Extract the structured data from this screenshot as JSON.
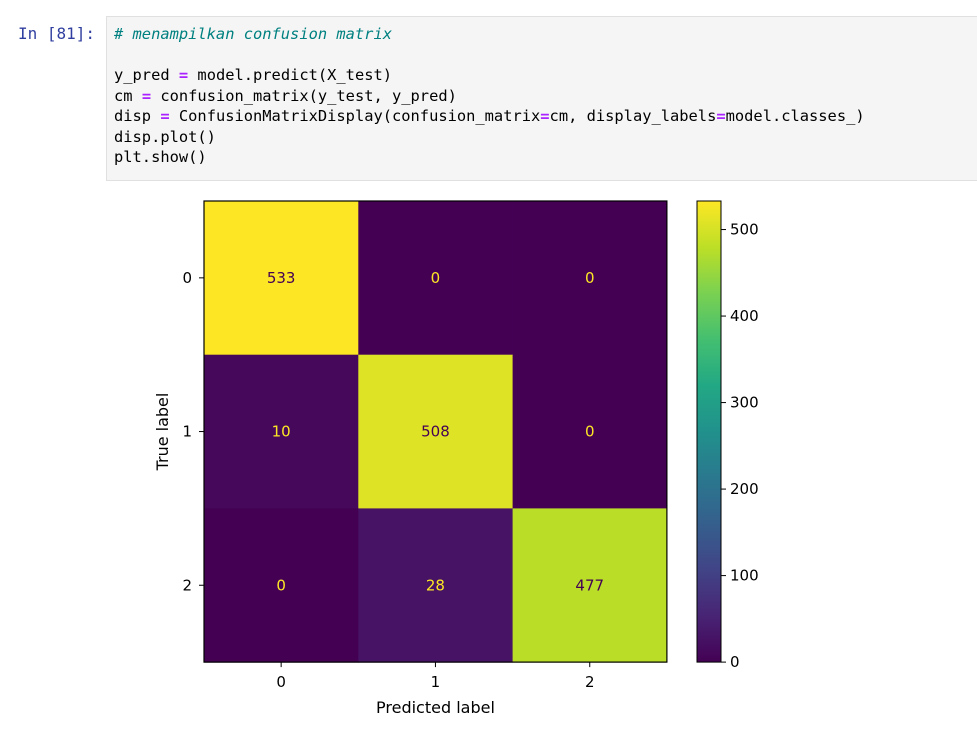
{
  "cell": {
    "prompt": "In [81]:",
    "code_lines": [
      [
        {
          "t": "# menampilkan confusion matrix",
          "c": "comment"
        }
      ],
      [
        {
          "t": "",
          "c": ""
        }
      ],
      [
        {
          "t": "y_pred ",
          "c": ""
        },
        {
          "t": "=",
          "c": "op"
        },
        {
          "t": " model.predict(X_test)",
          "c": ""
        }
      ],
      [
        {
          "t": "cm ",
          "c": ""
        },
        {
          "t": "=",
          "c": "op"
        },
        {
          "t": " confusion_matrix(y_test, y_pred)",
          "c": ""
        }
      ],
      [
        {
          "t": "disp ",
          "c": ""
        },
        {
          "t": "=",
          "c": "op"
        },
        {
          "t": " ConfusionMatrixDisplay(confusion_matrix",
          "c": ""
        },
        {
          "t": "=",
          "c": "op"
        },
        {
          "t": "cm, display_labels",
          "c": ""
        },
        {
          "t": "=",
          "c": "op"
        },
        {
          "t": "model.classes_)",
          "c": ""
        }
      ],
      [
        {
          "t": "disp.plot()",
          "c": ""
        }
      ],
      [
        {
          "t": "plt.show()",
          "c": ""
        }
      ]
    ]
  },
  "chart_data": {
    "type": "heatmap",
    "title": "",
    "xlabel": "Predicted label",
    "ylabel": "True label",
    "x_tick_labels": [
      "0",
      "1",
      "2"
    ],
    "y_tick_labels": [
      "0",
      "1",
      "2"
    ],
    "matrix": [
      [
        533,
        0,
        0
      ],
      [
        10,
        508,
        0
      ],
      [
        0,
        28,
        477
      ]
    ],
    "colormap": "viridis",
    "colorbar": {
      "min": 0,
      "max": 533,
      "ticks": [
        0,
        100,
        200,
        300,
        400,
        500
      ]
    },
    "text_colors": {
      "light": "#fde725",
      "dark": "#440154"
    }
  }
}
